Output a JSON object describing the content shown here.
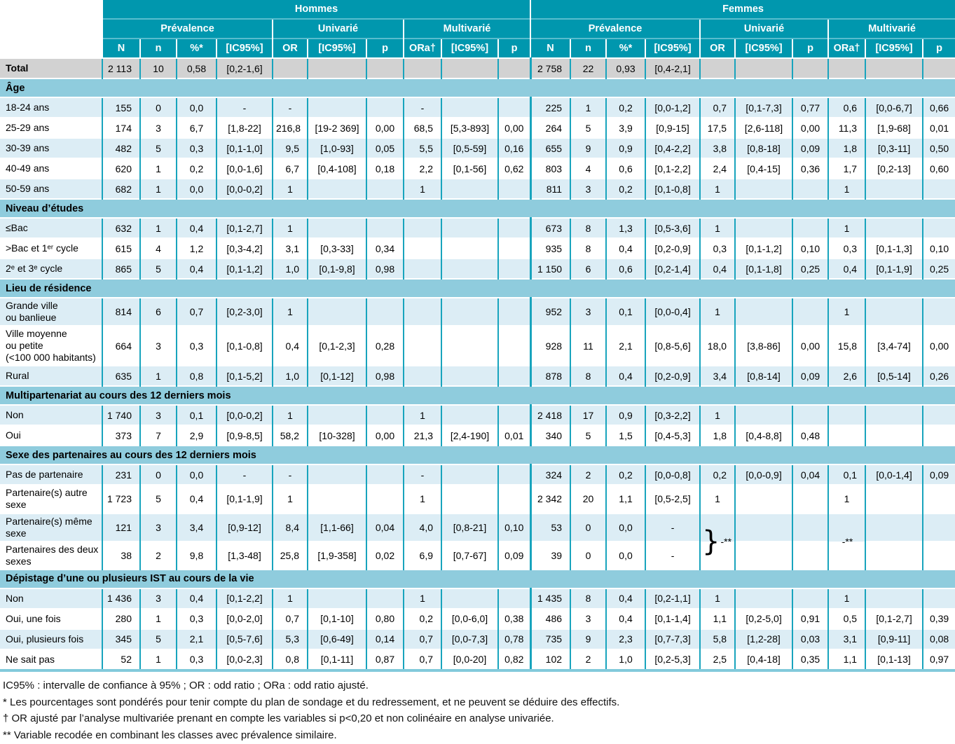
{
  "colors": {
    "header_teal": "#0097ae",
    "section_band_blue": "#8fccdd",
    "row_light_blue": "#dcedf5",
    "row_white": "#ffffff",
    "total_row_gray": "#d2d2d2",
    "grid_teal": "#18a4bd"
  },
  "table": {
    "groups": [
      "Hommes",
      "Femmes"
    ],
    "subgroups": [
      "Prévalence",
      "Univarié",
      "Multivarié"
    ],
    "columns": [
      "N",
      "n",
      "%*",
      "[IC95%]",
      "OR",
      "[IC95%]",
      "p",
      "ORa†",
      "[IC95%]",
      "p"
    ],
    "total": {
      "label": "Total",
      "hommes": [
        "2 113",
        "10",
        "0,58",
        "[0,2-1,6]",
        "",
        "",
        "",
        "",
        "",
        ""
      ],
      "femmes": [
        "2 758",
        "22",
        "0,93",
        "[0,4-2,1]",
        "",
        "",
        "",
        "",
        "",
        ""
      ]
    },
    "sections": [
      {
        "title": "Âge",
        "rows": [
          {
            "label": "18-24 ans",
            "hommes": [
              "155",
              "0",
              "0,0",
              "-",
              "-",
              "",
              "",
              "-",
              "",
              ""
            ],
            "femmes": [
              "225",
              "1",
              "0,2",
              "[0,0-1,2]",
              "0,7",
              "[0,1-7,3]",
              "0,77",
              "0,6",
              "[0,0-6,7]",
              "0,66"
            ]
          },
          {
            "label": "25-29 ans",
            "hommes": [
              "174",
              "3",
              "6,7",
              "[1,8-22]",
              "216,8",
              "[19-2 369]",
              "0,00",
              "68,5",
              "[5,3-893]",
              "0,00"
            ],
            "femmes": [
              "264",
              "5",
              "3,9",
              "[0,9-15]",
              "17,5",
              "[2,6-118]",
              "0,00",
              "11,3",
              "[1,9-68]",
              "0,01"
            ]
          },
          {
            "label": "30-39 ans",
            "hommes": [
              "482",
              "5",
              "0,3",
              "[0,1-1,0]",
              "9,5",
              "[1,0-93]",
              "0,05",
              "5,5",
              "[0,5-59]",
              "0,16"
            ],
            "femmes": [
              "655",
              "9",
              "0,9",
              "[0,4-2,2]",
              "3,8",
              "[0,8-18]",
              "0,09",
              "1,8",
              "[0,3-11]",
              "0,50"
            ]
          },
          {
            "label": "40-49 ans",
            "hommes": [
              "620",
              "1",
              "0,2",
              "[0,0-1,6]",
              "6,7",
              "[0,4-108]",
              "0,18",
              "2,2",
              "[0,1-56]",
              "0,62"
            ],
            "femmes": [
              "803",
              "4",
              "0,6",
              "[0,1-2,2]",
              "2,4",
              "[0,4-15]",
              "0,36",
              "1,7",
              "[0,2-13]",
              "0,60"
            ]
          },
          {
            "label": "50-59 ans",
            "hommes": [
              "682",
              "1",
              "0,0",
              "[0,0-0,2]",
              "1",
              "",
              "",
              "1",
              "",
              ""
            ],
            "femmes": [
              "811",
              "3",
              "0,2",
              "[0,1-0,8]",
              "1",
              "",
              "",
              "1",
              "",
              ""
            ]
          }
        ]
      },
      {
        "title": "Niveau d’études",
        "rows": [
          {
            "label": "≤Bac",
            "hommes": [
              "632",
              "1",
              "0,4",
              "[0,1-2,7]",
              "1",
              "",
              "",
              "",
              "",
              ""
            ],
            "femmes": [
              "673",
              "8",
              "1,3",
              "[0,5-3,6]",
              "1",
              "",
              "",
              "1",
              "",
              ""
            ]
          },
          {
            "label": ">Bac et 1ᵉʳ cycle",
            "hommes": [
              "615",
              "4",
              "1,2",
              "[0,3-4,2]",
              "3,1",
              "[0,3-33]",
              "0,34",
              "",
              "",
              ""
            ],
            "femmes": [
              "935",
              "8",
              "0,4",
              "[0,2-0,9]",
              "0,3",
              "[0,1-1,2]",
              "0,10",
              "0,3",
              "[0,1-1,3]",
              "0,10"
            ]
          },
          {
            "label": "2ᵉ et 3ᵉ cycle",
            "hommes": [
              "865",
              "5",
              "0,4",
              "[0,1-1,2]",
              "1,0",
              "[0,1-9,8]",
              "0,98",
              "",
              "",
              ""
            ],
            "femmes": [
              "1 150",
              "6",
              "0,6",
              "[0,2-1,4]",
              "0,4",
              "[0,1-1,8]",
              "0,25",
              "0,4",
              "[0,1-1,9]",
              "0,25"
            ]
          }
        ]
      },
      {
        "title": "Lieu de résidence",
        "rows": [
          {
            "label": "Grande ville\nou banlieue",
            "hommes": [
              "814",
              "6",
              "0,7",
              "[0,2-3,0]",
              "1",
              "",
              "",
              "",
              "",
              ""
            ],
            "femmes": [
              "952",
              "3",
              "0,1",
              "[0,0-0,4]",
              "1",
              "",
              "",
              "1",
              "",
              ""
            ]
          },
          {
            "label": "Ville moyenne\nou petite\n(<100 000 habitants)",
            "hommes": [
              "664",
              "3",
              "0,3",
              "[0,1-0,8]",
              "0,4",
              "[0,1-2,3]",
              "0,28",
              "",
              "",
              ""
            ],
            "femmes": [
              "928",
              "11",
              "2,1",
              "[0,8-5,6]",
              "18,0",
              "[3,8-86]",
              "0,00",
              "15,8",
              "[3,4-74]",
              "0,00"
            ]
          },
          {
            "label": "Rural",
            "hommes": [
              "635",
              "1",
              "0,8",
              "[0,1-5,2]",
              "1,0",
              "[0,1-12]",
              "0,98",
              "",
              "",
              ""
            ],
            "femmes": [
              "878",
              "8",
              "0,4",
              "[0,2-0,9]",
              "3,4",
              "[0,8-14]",
              "0,09",
              "2,6",
              "[0,5-14]",
              "0,26"
            ]
          }
        ]
      },
      {
        "title": "Multipartenariat au cours des 12 derniers mois",
        "rows": [
          {
            "label": "Non",
            "hommes": [
              "1 740",
              "3",
              "0,1",
              "[0,0-0,2]",
              "1",
              "",
              "",
              "1",
              "",
              ""
            ],
            "femmes": [
              "2 418",
              "17",
              "0,9",
              "[0,3-2,2]",
              "1",
              "",
              "",
              "",
              "",
              ""
            ]
          },
          {
            "label": "Oui",
            "hommes": [
              "373",
              "7",
              "2,9",
              "[0,9-8,5]",
              "58,2",
              "[10-328]",
              "0,00",
              "21,3",
              "[2,4-190]",
              "0,01"
            ],
            "femmes": [
              "340",
              "5",
              "1,5",
              "[0,4-5,3]",
              "1,8",
              "[0,4-8,8]",
              "0,48",
              "",
              "",
              ""
            ]
          }
        ]
      },
      {
        "title": "Sexe des partenaires au cours des 12 derniers mois",
        "rows": [
          {
            "label": "Pas de partenaire",
            "hommes": [
              "231",
              "0",
              "0,0",
              "-",
              "-",
              "",
              "",
              "-",
              "",
              ""
            ],
            "femmes": [
              "324",
              "2",
              "0,2",
              "[0,0-0,8]",
              "0,2",
              "[0,0-0,9]",
              "0,04",
              "0,1",
              "[0,0-1,4]",
              "0,09"
            ]
          },
          {
            "label": "Partenaire(s) autre\nsexe",
            "hommes": [
              "1 723",
              "5",
              "0,4",
              "[0,1-1,9]",
              "1",
              "",
              "",
              "1",
              "",
              ""
            ],
            "femmes": [
              "2 342",
              "20",
              "1,1",
              "[0,5-2,5]",
              "1",
              "",
              "",
              "1",
              "",
              ""
            ]
          },
          {
            "label": "Partenaire(s) même\nsexe",
            "hommes": [
              "121",
              "3",
              "3,4",
              "[0,9-12]",
              "8,4",
              "[1,1-66]",
              "0,04",
              "4,0",
              "[0,8-21]",
              "0,10"
            ],
            "femmes": [
              "53",
              "0",
              "0,0",
              "-",
              "",
              "",
              "",
              "",
              "",
              ""
            ]
          },
          {
            "label": "Partenaires des deux\nsexes",
            "hommes": [
              "38",
              "2",
              "9,8",
              "[1,3-48]",
              "25,8",
              "[1,9-358]",
              "0,02",
              "6,9",
              "[0,7-67]",
              "0,09"
            ],
            "femmes": [
              "39",
              "0",
              "0,0",
              "-",
              "",
              "",
              "",
              "",
              "",
              ""
            ]
          }
        ]
      },
      {
        "title": "Dépistage d’une ou plusieurs IST au cours de la vie",
        "rows": [
          {
            "label": "Non",
            "hommes": [
              "1 436",
              "3",
              "0,4",
              "[0,1-2,2]",
              "1",
              "",
              "",
              "1",
              "",
              ""
            ],
            "femmes": [
              "1 435",
              "8",
              "0,4",
              "[0,2-1,1]",
              "1",
              "",
              "",
              "1",
              "",
              ""
            ]
          },
          {
            "label": "Oui, une fois",
            "hommes": [
              "280",
              "1",
              "0,3",
              "[0,0-2,0]",
              "0,7",
              "[0,1-10]",
              "0,80",
              "0,2",
              "[0,0-6,0]",
              "0,38"
            ],
            "femmes": [
              "486",
              "3",
              "0,4",
              "[0,1-1,4]",
              "1,1",
              "[0,2-5,0]",
              "0,91",
              "0,5",
              "[0,1-2,7]",
              "0,39"
            ]
          },
          {
            "label": "Oui, plusieurs fois",
            "hommes": [
              "345",
              "5",
              "2,1",
              "[0,5-7,6]",
              "5,3",
              "[0,6-49]",
              "0,14",
              "0,7",
              "[0,0-7,3]",
              "0,78"
            ],
            "femmes": [
              "735",
              "9",
              "2,3",
              "[0,7-7,3]",
              "5,8",
              "[1,2-28]",
              "0,03",
              "3,1",
              "[0,9-11]",
              "0,08"
            ]
          },
          {
            "label": "Ne sait pas",
            "hommes": [
              "52",
              "1",
              "0,3",
              "[0,0-2,3]",
              "0,8",
              "[0,1-11]",
              "0,87",
              "0,7",
              "[0,0-20]",
              "0,82"
            ],
            "femmes": [
              "102",
              "2",
              "1,0",
              "[0,2-5,3]",
              "2,5",
              "[0,4-18]",
              "0,35",
              "1,1",
              "[0,1-13]",
              "0,97"
            ]
          }
        ]
      }
    ],
    "merges": [
      {
        "si": 4,
        "ri": 2,
        "side": "femmes",
        "ci": 4,
        "rowspan": 2,
        "style": "brace",
        "text": "-**"
      },
      {
        "si": 4,
        "ri": 2,
        "side": "femmes",
        "ci": 7,
        "rowspan": 2,
        "style": "plain",
        "text": "-**"
      }
    ]
  },
  "footnotes": [
    "IC95% : intervalle de confiance à 95% ; OR : odd ratio ; ORa : odd ratio ajusté.",
    "* Les pourcentages sont pondérés pour tenir compte du plan de sondage et du redressement, et ne peuvent se déduire des effectifs.",
    "† OR ajusté par l’analyse multivariée prenant en compte les variables si p<0,20 et non colinéaire en analyse univariée.",
    "** Variable recodée en combinant les classes avec prévalence similaire."
  ]
}
